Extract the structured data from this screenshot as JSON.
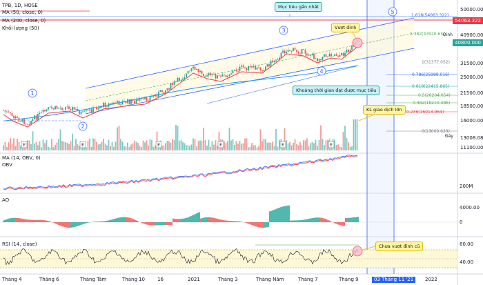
{
  "header": {
    "symbol_line": "TPB, 1D, HOSE",
    "ma50": "MA (50, close, 0)",
    "ma200": "MA (200, close, 0)",
    "volume": "Khối lượng (50)"
  },
  "panes": {
    "obv_label": "MA (14, OBV, 0)",
    "obv_sub": "OBV",
    "ao_label": "AO",
    "rsi_label": "RSI (14, close)"
  },
  "annotations": {
    "target_nearest": "Mục tiêu gần nhất",
    "breakout": "Vượt đỉnh",
    "time_to_target": "Khoảng thời gian đạt được mục tiêu",
    "big_volume": "KL giao dịch lớn",
    "rsi_not_broken": "Chưa vượt đỉnh cũ",
    "wave_labels": [
      "1",
      "2",
      "3",
      "4",
      "5"
    ],
    "peak_label": "Đỉnh",
    "bottom_label": "Đáy"
  },
  "fib_levels": [
    {
      "label": "1.618(54063.322)",
      "color": "#2962ff"
    },
    {
      "label": "1.382(43920.65)",
      "color": "#4caf50"
    },
    {
      "label": "1(31377.052)",
      "color": "#787b86"
    },
    {
      "label": "0.786(25989.016)",
      "color": "#2962ff"
    },
    {
      "label": "0.618(22415.865)",
      "color": "#26a69a"
    },
    {
      "label": "0.5(20204.054)",
      "color": "#4caf50"
    },
    {
      "label": "0.382(18210.486)",
      "color": "#4caf50"
    },
    {
      "label": "0.236(16013.964)",
      "color": "#f23645"
    },
    {
      "label": "0(13009.629)",
      "color": "#787b86"
    }
  ],
  "price_axis": [
    "50000.000",
    "40900.000",
    "31500.000",
    "25000.000",
    "21500.000",
    "18500.000",
    "16000.000",
    "13008.084",
    "11100.000"
  ],
  "price_tags": {
    "target": "54063.322",
    "current": "40800.000",
    "second": "40900.000"
  },
  "obv_axis": [
    "200M",
    "0"
  ],
  "ao_axis": [
    "4000.00",
    "0"
  ],
  "rsi_axis": [
    "80.00",
    "40.00"
  ],
  "time_axis": [
    "Tháng 4",
    "Tháng 6",
    "Tháng Tám",
    "Tháng 10",
    "16",
    "2021",
    "Tháng 3",
    "Tháng Năm",
    "Tháng 7",
    "Tháng 9",
    "03 Tháng 11 '21",
    "2022"
  ],
  "colors": {
    "up": "#26a69a",
    "down": "#ef5350",
    "ma50": "#f23645",
    "ma200": "#2196f3",
    "channel": "#2962ff",
    "callout_yellow": "#fff59d",
    "callout_blue": "#c8f0f4",
    "rsi_band": "#fff8d6"
  }
}
